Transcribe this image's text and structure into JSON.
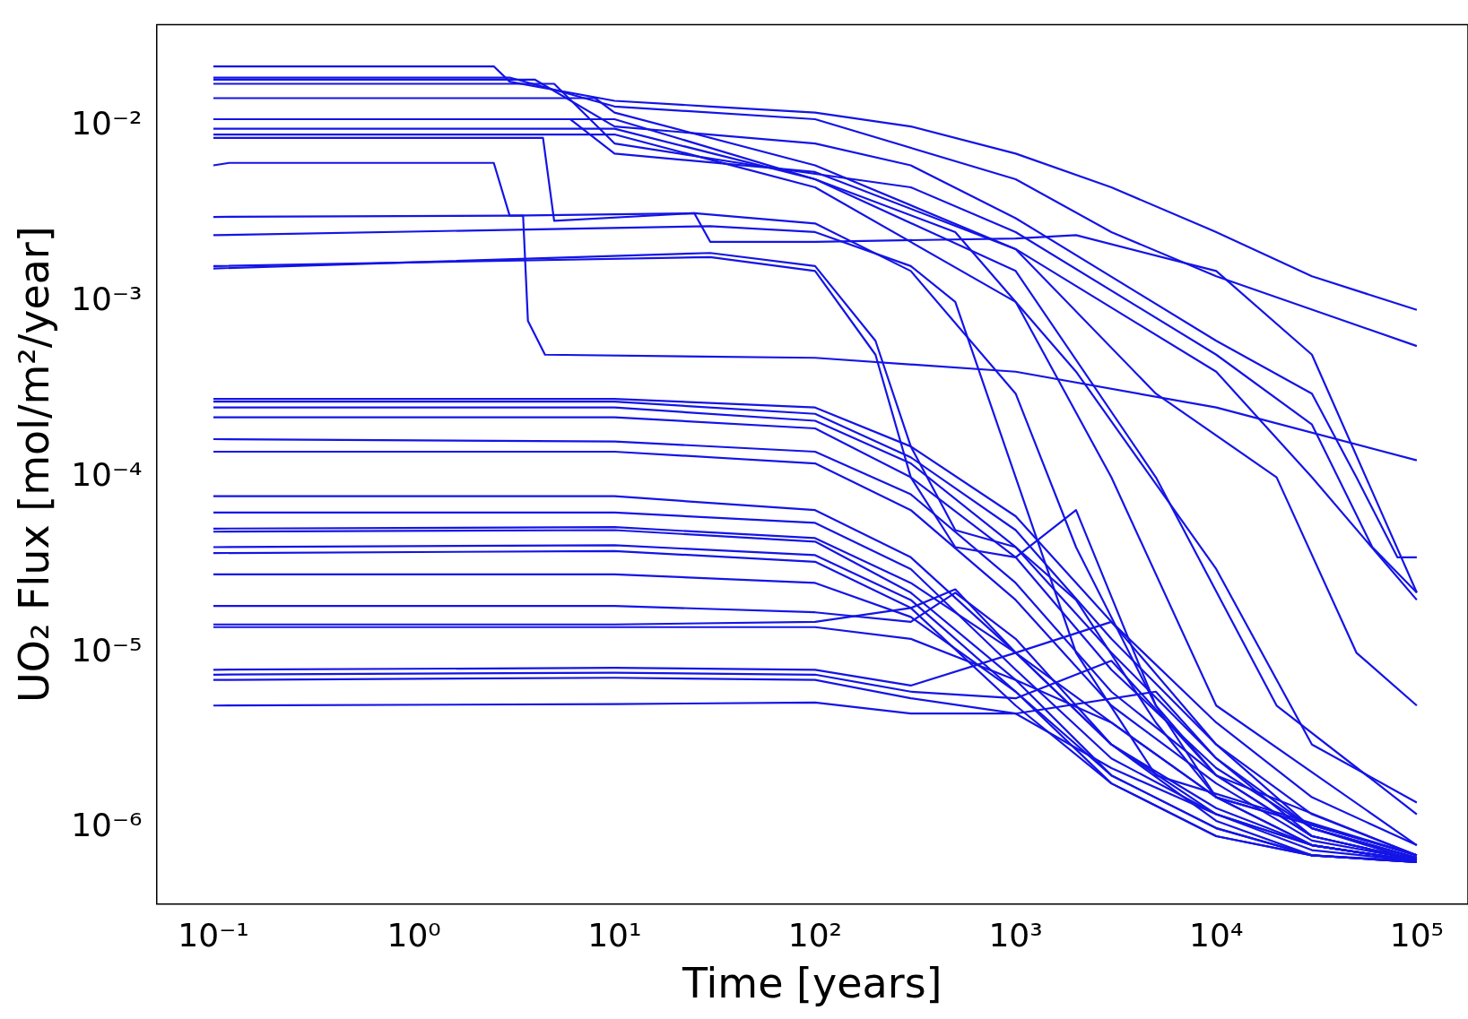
{
  "chart_data": {
    "type": "line",
    "xlabel": "Time [years]",
    "ylabel": "UO₂ Flux [mol/m²/year]",
    "log": "xy",
    "grid": false,
    "legend": false,
    "marker": "none",
    "line_style": "solid",
    "xlim": [
      0.052,
      180000
    ],
    "ylim": [
      3.7e-07,
      0.038
    ],
    "xticks": [
      {
        "value": 0.1,
        "label": "10⁻¹"
      },
      {
        "value": 1,
        "label": "10⁰"
      },
      {
        "value": 10,
        "label": "10¹"
      },
      {
        "value": 100,
        "label": "10²"
      },
      {
        "value": 1000,
        "label": "10³"
      },
      {
        "value": 10000,
        "label": "10⁴"
      },
      {
        "value": 100000,
        "label": "10⁵"
      }
    ],
    "yticks": [
      {
        "value": 1e-06,
        "label": "10⁻⁶"
      },
      {
        "value": 1e-05,
        "label": "10⁻⁵"
      },
      {
        "value": 0.0001,
        "label": "10⁻⁴"
      },
      {
        "value": 0.001,
        "label": "10⁻³"
      },
      {
        "value": 0.01,
        "label": "10⁻²"
      }
    ],
    "series": [
      {
        "color": "#1414e6",
        "x": [
          0.1,
          2.5,
          3,
          10,
          30,
          100,
          300,
          1000,
          3000,
          10000,
          30000,
          100000
        ],
        "values": [
          0.022,
          0.022,
          0.018,
          0.014,
          0.013,
          0.012,
          0.01,
          0.007,
          0.0045,
          0.0025,
          0.0014,
          0.0009
        ]
      },
      {
        "color": "#1414e6",
        "x": [
          0.1,
          3,
          10,
          100,
          1000,
          3000,
          10000,
          100000
        ],
        "values": [
          0.019,
          0.019,
          0.013,
          0.011,
          0.005,
          0.0025,
          0.0014,
          0.00056
        ]
      },
      {
        "color": "#1414e6",
        "x": [
          0.1,
          4,
          10,
          100,
          300,
          1000,
          10000,
          30000,
          50000,
          80000,
          100000
        ],
        "values": [
          0.0185,
          0.0185,
          0.01,
          0.008,
          0.006,
          0.003,
          0.0006,
          0.0003,
          0.0001,
          3.5e-05,
          3.5e-05
        ]
      },
      {
        "color": "#1414e6",
        "x": [
          0.1,
          5,
          10,
          50,
          300,
          1000,
          10000,
          30000,
          60000,
          100000
        ],
        "values": [
          0.0175,
          0.0175,
          0.008,
          0.006,
          0.0045,
          0.0025,
          0.0005,
          0.0002,
          4e-05,
          2.2e-05
        ]
      },
      {
        "color": "#1414e6",
        "x": [
          0.1,
          8,
          10,
          100,
          1000,
          10000,
          30000,
          100000
        ],
        "values": [
          0.0145,
          0.0145,
          0.012,
          0.006,
          0.002,
          0.0004,
          0.0001,
          2e-05
        ]
      },
      {
        "color": "#1414e6",
        "x": [
          0.1,
          6,
          10,
          100,
          1000,
          5000,
          20000,
          50000,
          100000
        ],
        "values": [
          0.011,
          0.011,
          0.007,
          0.0055,
          0.002,
          0.0003,
          0.0001,
          1e-05,
          5e-06
        ]
      },
      {
        "color": "#1414e6",
        "x": [
          0.1,
          10,
          100,
          500,
          2000,
          10000,
          30000,
          100000
        ],
        "values": [
          0.011,
          0.011,
          0.005,
          0.0025,
          0.0004,
          3e-05,
          3e-06,
          1.4e-06
        ]
      },
      {
        "color": "#1414e6",
        "x": [
          0.1,
          10,
          100,
          1000,
          5000,
          20000,
          100000
        ],
        "values": [
          0.0097,
          0.0097,
          0.005,
          0.0015,
          0.0001,
          5e-06,
          1.2e-06
        ]
      },
      {
        "color": "#1414e6",
        "x": [
          0.1,
          10,
          100,
          1000,
          3000,
          10000,
          100000
        ],
        "values": [
          0.009,
          0.009,
          0.0045,
          0.001,
          0.0001,
          5e-06,
          8e-07
        ]
      },
      {
        "color": "#1414e6",
        "x": [
          0.1,
          4.4,
          5,
          25,
          100,
          300,
          1000,
          2000,
          5000,
          10000,
          100000
        ],
        "values": [
          0.0086,
          0.0086,
          0.0029,
          0.0032,
          0.0028,
          0.0015,
          0.0003,
          4e-05,
          5e-06,
          1.5e-06,
          7e-07
        ]
      },
      {
        "color": "#1414e6",
        "x": [
          0.1,
          0.12,
          2.5,
          3,
          3.5,
          3.7,
          4.5,
          100,
          1000,
          10000,
          100000
        ],
        "values": [
          0.006,
          0.0062,
          0.0062,
          0.0031,
          0.0031,
          0.00078,
          0.0005,
          0.00048,
          0.0004,
          0.00025,
          0.000125
        ]
      },
      {
        "color": "#1414e6",
        "x": [
          0.1,
          3,
          25,
          30,
          100,
          1000,
          2000,
          10000,
          30000,
          100000
        ],
        "values": [
          0.00305,
          0.0031,
          0.0032,
          0.0022,
          0.0022,
          0.0023,
          0.0024,
          0.0015,
          0.0005,
          2.2e-05
        ]
      },
      {
        "color": "#1414e6",
        "x": [
          0.1,
          30,
          100,
          300,
          500,
          1000,
          2000,
          5000,
          100000
        ],
        "values": [
          0.0024,
          0.0027,
          0.0025,
          0.0016,
          0.001,
          0.0001,
          1e-05,
          2e-06,
          7e-07
        ]
      },
      {
        "color": "#1414e6",
        "x": [
          0.1,
          30,
          100,
          200,
          300,
          500,
          1000,
          2000,
          5000,
          10000,
          100000
        ],
        "values": [
          0.0016,
          0.0018,
          0.0015,
          0.0005,
          0.0001,
          4e-05,
          3.5e-05,
          6.5e-05,
          5e-06,
          2e-06,
          7e-07
        ]
      },
      {
        "color": "#1414e6",
        "x": [
          0.1,
          30,
          100,
          200,
          300,
          500,
          1000,
          2000,
          5000,
          10000,
          100000
        ],
        "values": [
          0.00155,
          0.0019,
          0.0016,
          0.0006,
          0.00015,
          5e-05,
          4e-05,
          2e-05,
          4e-06,
          1.5e-06,
          7e-07
        ]
      },
      {
        "color": "#1414e6",
        "x": [
          0.1,
          10,
          100,
          300,
          1000,
          3000,
          10000,
          30000,
          100000
        ],
        "values": [
          0.00028,
          0.00028,
          0.00025,
          0.00015,
          6e-05,
          1.5e-05,
          4e-06,
          1.5e-06,
          8e-07
        ]
      },
      {
        "color": "#1414e6",
        "x": [
          0.1,
          10,
          100,
          300,
          1000,
          3000,
          10000,
          30000,
          100000
        ],
        "values": [
          0.00027,
          0.00027,
          0.00023,
          0.00013,
          5e-05,
          1.2e-05,
          3e-06,
          1.2e-06,
          7e-07
        ]
      },
      {
        "color": "#1414e6",
        "x": [
          0.1,
          10,
          100,
          300,
          1000,
          3000,
          10000,
          30000,
          100000
        ],
        "values": [
          0.00025,
          0.00025,
          0.00021,
          0.00012,
          4e-05,
          1e-05,
          2.5e-06,
          1e-06,
          6.8e-07
        ]
      },
      {
        "color": "#1414e6",
        "x": [
          0.1,
          10,
          100,
          300,
          1000,
          3000,
          10000,
          30000,
          100000
        ],
        "values": [
          0.00022,
          0.00022,
          0.00019,
          0.0001,
          3.5e-05,
          8e-06,
          2.2e-06,
          1e-06,
          6.7e-07
        ]
      },
      {
        "color": "#1414e6",
        "x": [
          0.1,
          10,
          100,
          300,
          1000,
          3000,
          10000,
          30000,
          100000
        ],
        "values": [
          0.000165,
          0.00016,
          0.00014,
          8e-05,
          2.5e-05,
          6e-06,
          2e-06,
          9e-07,
          6.6e-07
        ]
      },
      {
        "color": "#1414e6",
        "x": [
          0.1,
          10,
          100,
          300,
          1000,
          3000,
          10000,
          30000,
          100000
        ],
        "values": [
          0.00014,
          0.00014,
          0.00012,
          6.5e-05,
          2e-05,
          5e-06,
          1.8e-06,
          8.5e-07,
          6.6e-07
        ]
      },
      {
        "color": "#1414e6",
        "x": [
          0.1,
          10,
          100,
          300,
          1000,
          3000,
          10000,
          30000,
          100000
        ],
        "values": [
          7.8e-05,
          7.8e-05,
          6.5e-05,
          3.5e-05,
          1e-05,
          3e-06,
          1.3e-06,
          8e-07,
          6.5e-07
        ]
      },
      {
        "color": "#1414e6",
        "x": [
          0.1,
          10,
          100,
          300,
          1000,
          3000,
          10000,
          30000,
          100000
        ],
        "values": [
          6.3e-05,
          6.3e-05,
          5.5e-05,
          3e-05,
          8e-06,
          2.5e-06,
          1.2e-06,
          7.5e-07,
          6.5e-07
        ]
      },
      {
        "color": "#1414e6",
        "x": [
          0.1,
          10,
          100,
          300,
          1000,
          3000,
          10000,
          30000,
          100000
        ],
        "values": [
          5.1e-05,
          5.2e-05,
          4.5e-05,
          2.5e-05,
          1e-05,
          1.5e-05,
          3e-06,
          1e-06,
          6.5e-07
        ]
      },
      {
        "color": "#1414e6",
        "x": [
          0.1,
          10,
          100,
          300,
          1000,
          3000,
          10000,
          30000,
          100000
        ],
        "values": [
          4.9e-05,
          5e-05,
          4.3e-05,
          2.2e-05,
          7e-06,
          2e-06,
          1e-06,
          7e-07,
          6.4e-07
        ]
      },
      {
        "color": "#1414e6",
        "x": [
          0.1,
          10,
          100,
          300,
          1000,
          3000,
          10000,
          30000,
          100000
        ],
        "values": [
          4e-05,
          4.1e-05,
          3.6e-05,
          2e-05,
          6e-06,
          2e-06,
          1e-06,
          7e-07,
          6.5e-07
        ]
      },
      {
        "color": "#1414e6",
        "x": [
          0.1,
          10,
          100,
          300,
          1000,
          3000,
          10000,
          30000,
          100000
        ],
        "values": [
          3.7e-05,
          3.8e-05,
          3.3e-05,
          1.8e-05,
          5e-06,
          1.8e-06,
          9e-07,
          7e-07,
          6.4e-07
        ]
      },
      {
        "color": "#1414e6",
        "x": [
          0.1,
          10,
          100,
          300,
          1000,
          3000,
          10000,
          30000,
          100000
        ],
        "values": [
          2.8e-05,
          2.8e-05,
          2.5e-05,
          1.6e-05,
          6e-06,
          1.8e-06,
          9e-07,
          7e-07,
          6.4e-07
        ]
      },
      {
        "color": "#1414e6",
        "x": [
          0.1,
          10,
          100,
          300,
          500,
          1000,
          3000,
          10000,
          30000,
          100000
        ],
        "values": [
          1.85e-05,
          1.85e-05,
          1.7e-05,
          1.5e-05,
          2.2e-05,
          1.2e-05,
          3e-06,
          1.2e-06,
          8e-07,
          6.5e-07
        ]
      },
      {
        "color": "#1414e6",
        "x": [
          0.1,
          10,
          100,
          300,
          500,
          1000,
          3000,
          10000,
          30000,
          100000
        ],
        "values": [
          1.45e-05,
          1.45e-05,
          1.5e-05,
          1.8e-05,
          2.3e-05,
          1e-05,
          3e-06,
          1.1e-06,
          7e-07,
          6.4e-07
        ]
      },
      {
        "color": "#1414e6",
        "x": [
          0.1,
          10,
          100,
          300,
          1000,
          3000,
          10000,
          30000,
          100000
        ],
        "values": [
          1.4e-05,
          1.4e-05,
          1.4e-05,
          1.2e-05,
          7e-06,
          4e-06,
          1.5e-06,
          8e-07,
          6.5e-07
        ]
      },
      {
        "color": "#1414e6",
        "x": [
          0.1,
          10,
          100,
          300,
          1000,
          3000,
          10000,
          30000,
          100000
        ],
        "values": [
          8e-06,
          8.2e-06,
          8e-06,
          6.5e-06,
          1e-05,
          4e-06,
          1.5e-06,
          8e-07,
          6.5e-07
        ]
      },
      {
        "color": "#1414e6",
        "x": [
          0.1,
          10,
          100,
          300,
          1000,
          3000,
          10000,
          30000,
          100000
        ],
        "values": [
          7.5e-06,
          7.7e-06,
          7.5e-06,
          6e-06,
          5.5e-06,
          9e-06,
          2e-06,
          9e-07,
          6.6e-07
        ]
      },
      {
        "color": "#1414e6",
        "x": [
          0.1,
          10,
          100,
          300,
          1000,
          5000,
          10000,
          30000,
          100000
        ],
        "values": [
          7e-06,
          7.2e-06,
          7e-06,
          5.5e-06,
          4.5e-06,
          6e-06,
          2.5e-06,
          9e-07,
          6.6e-07
        ]
      },
      {
        "color": "#1414e6",
        "x": [
          0.1,
          10,
          100,
          300,
          1000,
          3000,
          10000,
          30000,
          100000
        ],
        "values": [
          5e-06,
          5.1e-06,
          5.2e-06,
          4.5e-06,
          4.5e-06,
          2.2e-06,
          1.2e-06,
          8e-07,
          6.5e-07
        ]
      }
    ]
  }
}
